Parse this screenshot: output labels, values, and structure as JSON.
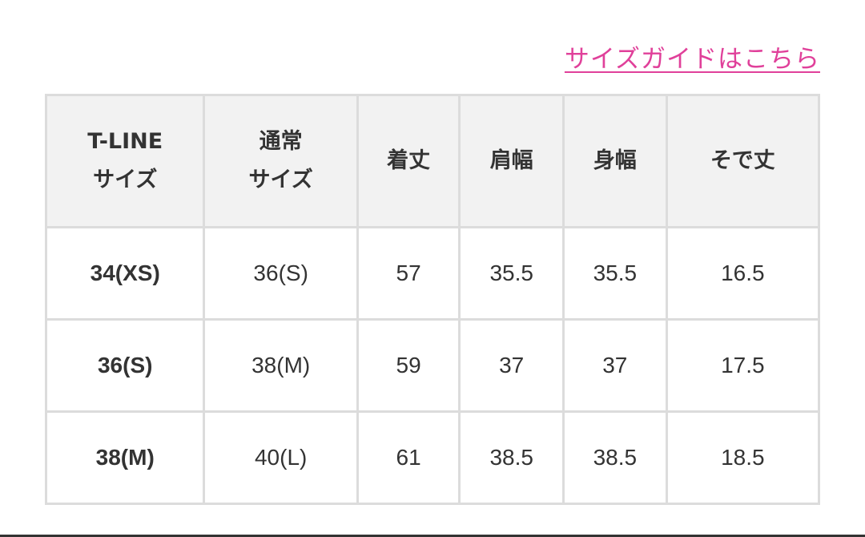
{
  "link": {
    "label": "サイズガイドはこちら",
    "color": "#e0409a"
  },
  "table": {
    "headers": [
      {
        "line1": "T-LINE",
        "line2": "サイズ"
      },
      {
        "line1": "通常",
        "line2": "サイズ"
      },
      {
        "line1": "着丈",
        "line2": ""
      },
      {
        "line1": "肩幅",
        "line2": ""
      },
      {
        "line1": "身幅",
        "line2": ""
      },
      {
        "line1": "そで丈",
        "line2": ""
      }
    ],
    "rows": [
      [
        "34(XS)",
        "36(S)",
        "57",
        "35.5",
        "35.5",
        "16.5"
      ],
      [
        "36(S)",
        "38(M)",
        "59",
        "37",
        "37",
        "17.5"
      ],
      [
        "38(M)",
        "40(L)",
        "61",
        "38.5",
        "38.5",
        "18.5"
      ]
    ]
  }
}
